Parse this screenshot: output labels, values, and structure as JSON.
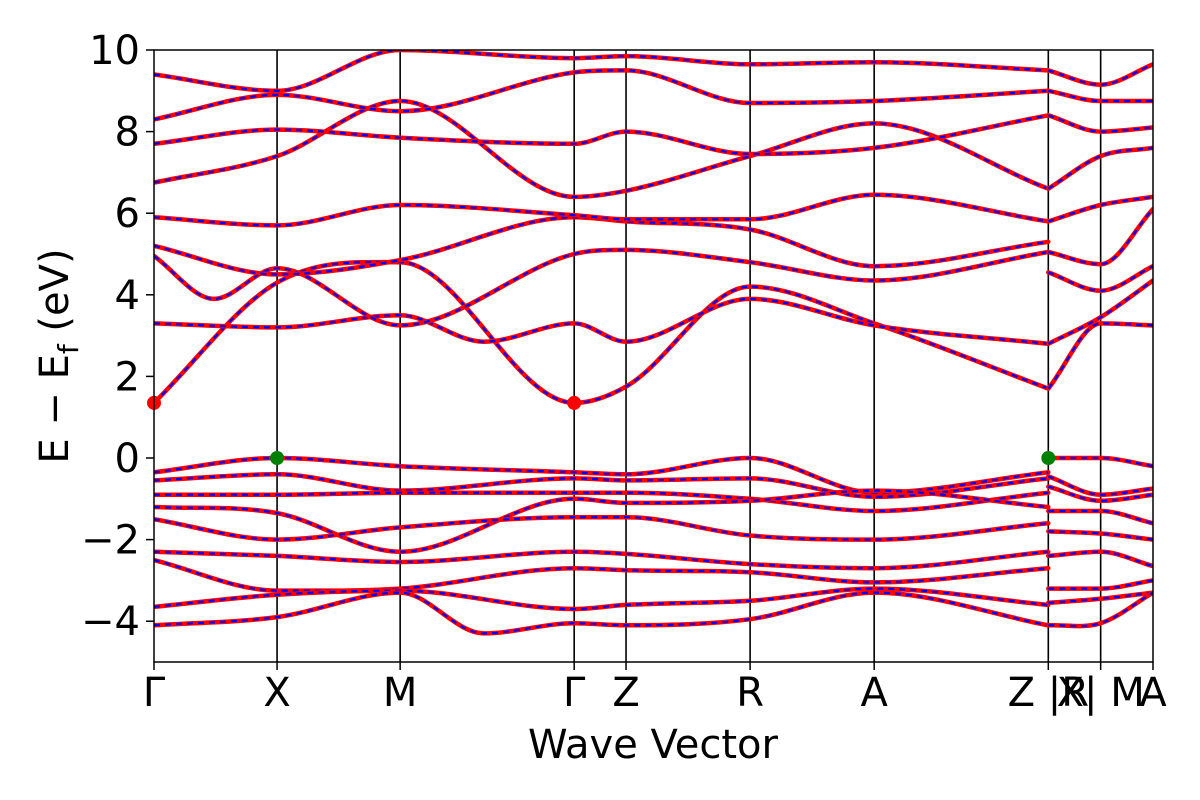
{
  "chart_data": {
    "type": "line",
    "title": "",
    "xlabel": "Wave Vector",
    "ylabel_parts": {
      "pre": "E − E",
      "sub": "f",
      "post": " (eV)"
    },
    "ylim": [
      -5,
      10
    ],
    "xlim": [
      0,
      1
    ],
    "yticks": [
      {
        "value": 10,
        "label": "10"
      },
      {
        "value": 8,
        "label": "8"
      },
      {
        "value": 6,
        "label": "6"
      },
      {
        "value": 4,
        "label": "4"
      },
      {
        "value": 2,
        "label": "2"
      },
      {
        "value": 0,
        "label": "0"
      },
      {
        "value": -2,
        "label": "−2"
      },
      {
        "value": -4,
        "label": "−4"
      }
    ],
    "kpoints": [
      {
        "label": "Γ",
        "pos": 0.0
      },
      {
        "label": "X",
        "pos": 0.1232
      },
      {
        "label": "M",
        "pos": 0.2464
      },
      {
        "label": "Γ",
        "pos": 0.4206
      },
      {
        "label": "Z",
        "pos": 0.4725
      },
      {
        "label": "R",
        "pos": 0.5967
      },
      {
        "label": "A",
        "pos": 0.7209
      },
      {
        "label": "Z |R",
        "pos": 0.8952
      },
      {
        "label": "X| M",
        "pos": 0.9476
      },
      {
        "label": "A",
        "pos": 1.0
      }
    ],
    "series": [
      {
        "color": "#ff0000",
        "style": "solid"
      },
      {
        "color": "#0000ff",
        "style": "dashed"
      }
    ],
    "bands": [
      {
        "x": [
          0.0,
          0.1232,
          0.2464,
          0.4206,
          0.4725,
          0.5967,
          0.7209,
          0.8952
        ],
        "y": [
          1.35,
          4.3,
          4.8,
          1.35,
          1.75,
          4.2,
          3.3,
          1.7
        ]
      },
      {
        "x": [
          0.0,
          0.1232,
          0.2464,
          0.33,
          0.4206,
          0.4725,
          0.5967,
          0.7209,
          0.8952
        ],
        "y": [
          3.3,
          3.2,
          3.5,
          2.85,
          3.3,
          2.85,
          3.9,
          3.25,
          2.8
        ]
      },
      {
        "x": [
          0.0,
          0.06,
          0.1232,
          0.2464,
          0.4206,
          0.4725,
          0.5967,
          0.7209,
          0.8952
        ],
        "y": [
          4.95,
          3.9,
          4.65,
          3.25,
          5.0,
          5.1,
          4.8,
          4.35,
          5.05
        ]
      },
      {
        "x": [
          0.0,
          0.1232,
          0.2464,
          0.4206,
          0.4725,
          0.5967,
          0.7209,
          0.8952
        ],
        "y": [
          5.2,
          4.5,
          4.85,
          5.9,
          5.8,
          5.6,
          4.7,
          5.3
        ]
      },
      {
        "x": [
          0.0,
          0.1232,
          0.2464,
          0.4206,
          0.4725,
          0.5967,
          0.7209,
          0.8952
        ],
        "y": [
          5.9,
          5.7,
          6.2,
          5.95,
          5.85,
          5.85,
          6.45,
          5.8
        ]
      },
      {
        "x": [
          0.0,
          0.1232,
          0.2464,
          0.4206,
          0.4725,
          0.5967,
          0.7209,
          0.8952
        ],
        "y": [
          6.75,
          7.4,
          8.75,
          6.4,
          6.55,
          7.4,
          8.2,
          6.6
        ]
      },
      {
        "x": [
          0.0,
          0.1232,
          0.2464,
          0.4206,
          0.4725,
          0.5967,
          0.7209,
          0.8952
        ],
        "y": [
          7.7,
          8.05,
          7.85,
          7.7,
          8.0,
          7.45,
          7.6,
          8.4
        ]
      },
      {
        "x": [
          0.0,
          0.1232,
          0.2464,
          0.4206,
          0.4725,
          0.5967,
          0.7209,
          0.8952
        ],
        "y": [
          8.3,
          8.9,
          8.5,
          9.45,
          9.5,
          8.7,
          8.75,
          9.0
        ]
      },
      {
        "x": [
          0.0,
          0.1232,
          0.2464,
          0.4206,
          0.4725,
          0.5967,
          0.7209,
          0.8952
        ],
        "y": [
          9.4,
          9.0,
          10.0,
          9.8,
          9.85,
          9.65,
          9.7,
          9.5
        ]
      },
      {
        "x": [
          0.0,
          0.1232,
          0.2464,
          0.4206,
          0.4725,
          0.5967,
          0.7209,
          0.8952
        ],
        "y": [
          -0.35,
          0.0,
          -0.2,
          -0.35,
          -0.4,
          0.0,
          -0.85,
          -0.35
        ]
      },
      {
        "x": [
          0.0,
          0.1232,
          0.2464,
          0.4206,
          0.4725,
          0.5967,
          0.7209,
          0.8952
        ],
        "y": [
          -0.55,
          -0.4,
          -0.8,
          -0.5,
          -0.55,
          -0.5,
          -0.95,
          -0.5
        ]
      },
      {
        "x": [
          0.0,
          0.1232,
          0.2464,
          0.4206,
          0.4725,
          0.5967,
          0.7209,
          0.8952
        ],
        "y": [
          -0.9,
          -0.9,
          -0.85,
          -0.85,
          -0.85,
          -1.0,
          -1.3,
          -0.85
        ]
      },
      {
        "x": [
          0.0,
          0.1232,
          0.2464,
          0.4206,
          0.4725,
          0.5967,
          0.7209,
          0.8952
        ],
        "y": [
          -1.2,
          -1.35,
          -2.3,
          -1.0,
          -1.1,
          -1.05,
          -0.8,
          -1.2
        ]
      },
      {
        "x": [
          0.0,
          0.1232,
          0.2464,
          0.4206,
          0.4725,
          0.5967,
          0.7209,
          0.8952
        ],
        "y": [
          -1.5,
          -2.0,
          -1.7,
          -1.45,
          -1.45,
          -1.9,
          -2.0,
          -1.6
        ]
      },
      {
        "x": [
          0.0,
          0.1232,
          0.2464,
          0.4206,
          0.4725,
          0.5967,
          0.7209,
          0.8952
        ],
        "y": [
          -2.3,
          -2.4,
          -2.55,
          -2.3,
          -2.35,
          -2.6,
          -2.7,
          -2.3
        ]
      },
      {
        "x": [
          0.0,
          0.1232,
          0.2464,
          0.4206,
          0.4725,
          0.5967,
          0.7209,
          0.8952
        ],
        "y": [
          -2.5,
          -3.25,
          -3.2,
          -2.7,
          -2.75,
          -2.8,
          -3.05,
          -2.7
        ]
      },
      {
        "x": [
          0.0,
          0.1232,
          0.2464,
          0.4206,
          0.4725,
          0.5967,
          0.7209,
          0.8952
        ],
        "y": [
          -3.65,
          -3.35,
          -3.25,
          -3.7,
          -3.6,
          -3.5,
          -3.2,
          -3.6
        ]
      },
      {
        "x": [
          0.0,
          0.1232,
          0.2464,
          0.33,
          0.4206,
          0.4725,
          0.5967,
          0.7209,
          0.8952
        ],
        "y": [
          -4.1,
          -3.9,
          -3.3,
          -4.3,
          -4.05,
          -4.1,
          -3.95,
          -3.3,
          -4.1
        ]
      },
      {
        "x": [
          0.8952,
          0.9476,
          1.0
        ],
        "y": [
          0.0,
          0.0,
          -0.2
        ]
      },
      {
        "x": [
          0.8952,
          0.9476,
          1.0
        ],
        "y": [
          -0.45,
          -0.9,
          -0.75
        ]
      },
      {
        "x": [
          0.8952,
          0.9476,
          1.0
        ],
        "y": [
          -0.7,
          -1.05,
          -0.9
        ]
      },
      {
        "x": [
          0.8952,
          0.9476,
          1.0
        ],
        "y": [
          -1.3,
          -1.3,
          -1.6
        ]
      },
      {
        "x": [
          0.8952,
          0.9476,
          1.0
        ],
        "y": [
          -1.8,
          -1.85,
          -2.0
        ]
      },
      {
        "x": [
          0.8952,
          0.9476,
          1.0
        ],
        "y": [
          -2.4,
          -2.3,
          -2.65
        ]
      },
      {
        "x": [
          0.8952,
          0.9476,
          1.0
        ],
        "y": [
          -3.2,
          -3.2,
          -3.0
        ]
      },
      {
        "x": [
          0.8952,
          0.9476,
          1.0
        ],
        "y": [
          -3.55,
          -3.45,
          -3.3
        ]
      },
      {
        "x": [
          0.8952,
          0.9476,
          1.0
        ],
        "y": [
          -4.1,
          -4.05,
          -3.3
        ]
      },
      {
        "x": [
          0.8952,
          0.9476,
          1.0
        ],
        "y": [
          1.7,
          3.3,
          3.25
        ]
      },
      {
        "x": [
          0.8952,
          0.9476,
          1.0
        ],
        "y": [
          2.8,
          3.45,
          4.35
        ]
      },
      {
        "x": [
          0.8952,
          0.9476,
          1.0
        ],
        "y": [
          4.55,
          4.1,
          4.7
        ]
      },
      {
        "x": [
          0.8952,
          0.9476,
          1.0
        ],
        "y": [
          5.05,
          4.75,
          6.1
        ]
      },
      {
        "x": [
          0.8952,
          0.9476,
          1.0
        ],
        "y": [
          5.8,
          6.2,
          6.4
        ]
      },
      {
        "x": [
          0.8952,
          0.9476,
          1.0
        ],
        "y": [
          6.6,
          7.4,
          7.6
        ]
      },
      {
        "x": [
          0.8952,
          0.9476,
          1.0
        ],
        "y": [
          8.4,
          8.0,
          8.1
        ]
      },
      {
        "x": [
          0.8952,
          0.9476,
          1.0
        ],
        "y": [
          9.0,
          8.75,
          8.75
        ]
      },
      {
        "x": [
          0.8952,
          0.9476,
          1.0
        ],
        "y": [
          9.5,
          9.15,
          9.65
        ]
      }
    ],
    "markers": [
      {
        "x": 0.0,
        "y": 1.35,
        "color": "#ff0000",
        "kind": "CBM"
      },
      {
        "x": 0.4206,
        "y": 1.35,
        "color": "#ff0000",
        "kind": "CBM"
      },
      {
        "x": 0.1232,
        "y": 0.0,
        "color": "#008000",
        "kind": "VBM"
      },
      {
        "x": 0.8952,
        "y": 0.0,
        "color": "#008000",
        "kind": "VBM"
      }
    ],
    "grid": false,
    "legend": "none"
  }
}
